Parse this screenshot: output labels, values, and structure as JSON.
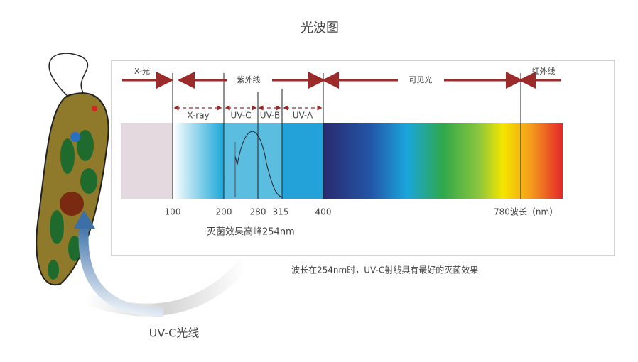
{
  "title": "光波图",
  "bands": [
    "X-光",
    "紫外线",
    "可见光",
    "红外线"
  ],
  "uv_bands": [
    "X-ray",
    "UV-C",
    "UV-B",
    "UV-A"
  ],
  "axis_labels": [
    "100",
    "200",
    "280",
    "315",
    "400",
    "780波长（nm）"
  ],
  "peak_note": "灭菌效果高峰254nm",
  "caption": "波长在254nm时，UV-C射线具有最好的灭菌效果",
  "ray_label": "UV-C光线"
}
